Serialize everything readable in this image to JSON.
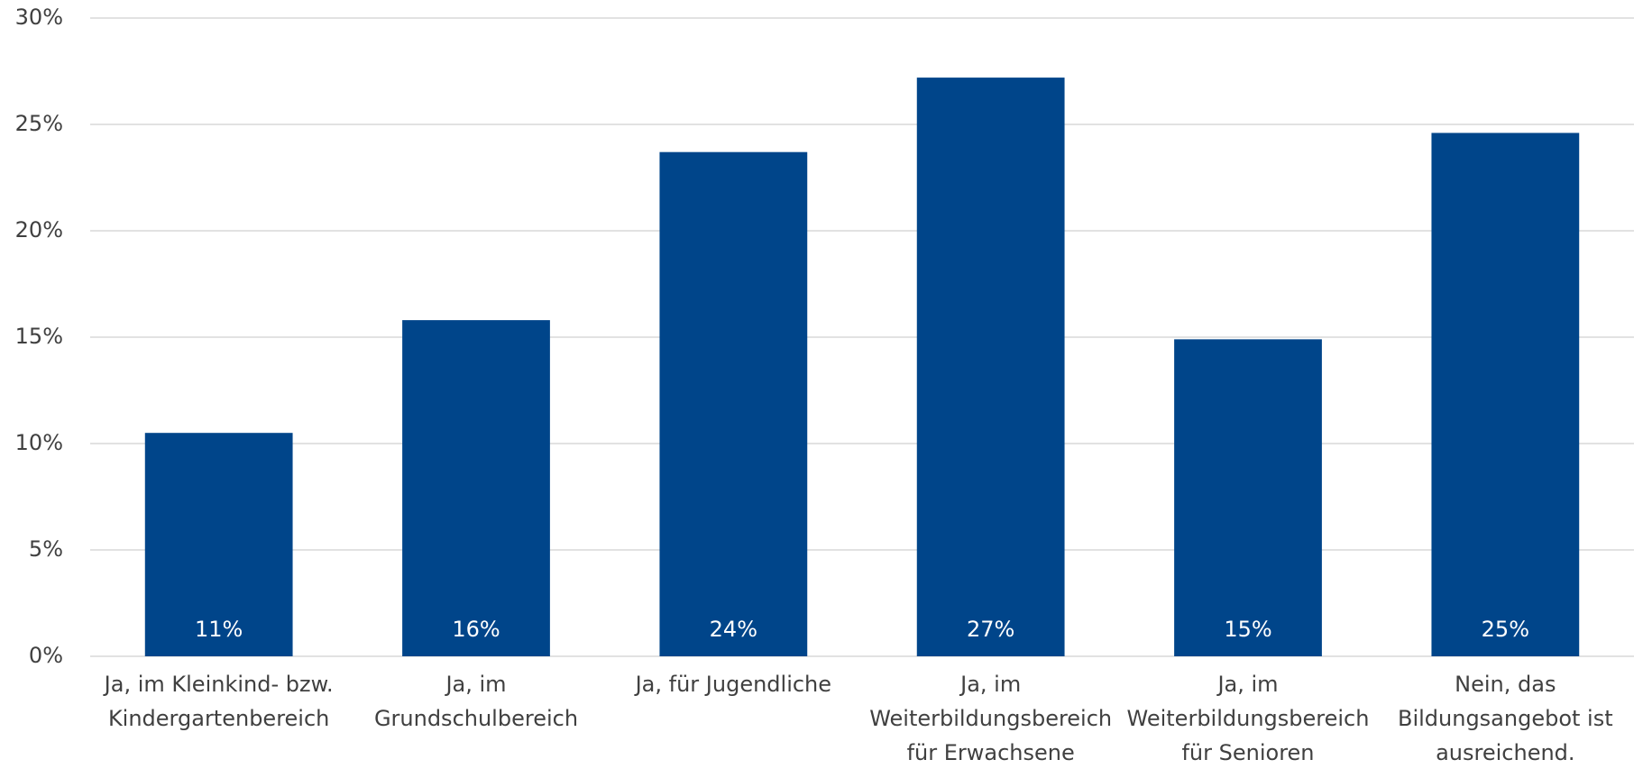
{
  "chart_data": {
    "type": "bar",
    "categories": [
      "Ja, im Kleinkind- bzw. Kindergartenbereich",
      "Ja, im Grundschulbereich",
      "Ja, für Jugendliche",
      "Ja, im Weiterbildungsbereich für Erwachsene",
      "Ja, im Weiterbildungsbereich für Senioren",
      "Nein, das Bildungsangebot ist ausreichend."
    ],
    "values": [
      10.5,
      15.8,
      23.7,
      27.2,
      14.9,
      24.6
    ],
    "value_labels": [
      "11%",
      "16%",
      "24%",
      "27%",
      "15%",
      "25%"
    ],
    "color": "#00458a",
    "ylim": [
      0,
      30
    ],
    "yticks": [
      {
        "value": 0,
        "label": "0%"
      },
      {
        "value": 5,
        "label": "5%"
      },
      {
        "value": 10,
        "label": "10%"
      },
      {
        "value": 15,
        "label": "15%"
      },
      {
        "value": 20,
        "label": "20%"
      },
      {
        "value": 25,
        "label": "25%"
      },
      {
        "value": 30,
        "label": "30%"
      }
    ],
    "grid": true
  }
}
